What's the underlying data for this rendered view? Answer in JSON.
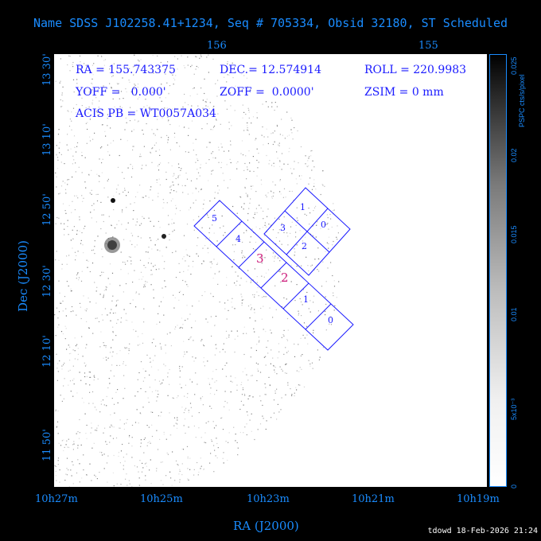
{
  "title": "Name SDSS J102258.41+1234, Seq # 705334, Obsid 32180, ST Scheduled",
  "info": {
    "ra": "RA = 155.743375",
    "dec": "DEC.= 12.574914",
    "roll": "ROLL = 220.9983",
    "yoff": "YOFF =   0.000'",
    "zoff": "ZOFF =  0.0000'",
    "zsim": "ZSIM = 0 mm",
    "acis_pb": "ACIS PB = WT0057A034"
  },
  "top_ticks": [
    "156",
    "155"
  ],
  "bottom_ticks": [
    "10h27m",
    "10h25m",
    "10h23m",
    "10h21m",
    "10h19m"
  ],
  "left_ticks": [
    "13 30'",
    "13 10'",
    "12 50'",
    "12 30'",
    "12 10'",
    "11 50'"
  ],
  "x_title": "RA (J2000)",
  "y_title": "Dec (J2000)",
  "colorbar": {
    "label": "PSPC cts/s/pixel",
    "ticks": [
      "0",
      "5x10⁻³",
      "0.01",
      "0.015",
      "0.02",
      "0.025"
    ]
  },
  "chips": [
    "5",
    "4",
    "3",
    "2",
    "1",
    "0",
    "1",
    "0",
    "3",
    "2"
  ],
  "footer": "tdowd 18-Feb-2026 21:24"
}
